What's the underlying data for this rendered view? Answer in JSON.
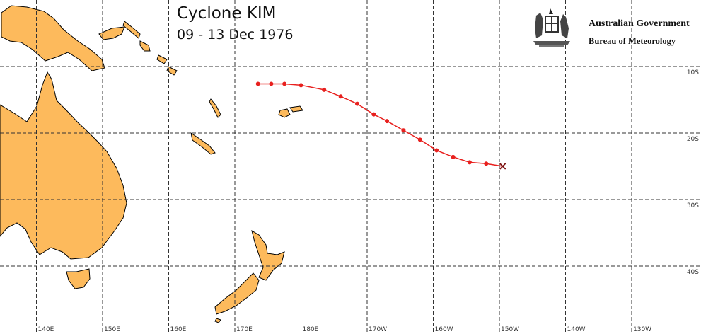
{
  "title": "Cyclone KIM",
  "dates": "09 - 13 Dec 1976",
  "logo": {
    "line1": "Australian Government",
    "line2": "Bureau of Meteorology"
  },
  "lon_labels": [
    "140E",
    "150E",
    "160E",
    "170E",
    "180E",
    "170W",
    "160W",
    "150W",
    "140W",
    "130W"
  ],
  "lat_labels": [
    "10S",
    "20S",
    "30S",
    "40S"
  ],
  "colors": {
    "land": "#FDBA5C",
    "track": "#E8201E",
    "grid": "#333333"
  },
  "track": {
    "lon": [
      173.5,
      175.5,
      177.5,
      180.0,
      183.5,
      186.0,
      188.5,
      191.0,
      193.0,
      195.5,
      198.0,
      200.5,
      203.0,
      205.5,
      208.0,
      210.5
    ],
    "lat": [
      -12.6,
      -12.6,
      -12.6,
      -12.8,
      -13.5,
      -14.5,
      -15.6,
      -17.2,
      -18.2,
      -19.6,
      -21.0,
      -22.6,
      -23.6,
      -24.4,
      -24.6,
      -25.0
    ],
    "end_marker": "x-cross-icon"
  }
}
